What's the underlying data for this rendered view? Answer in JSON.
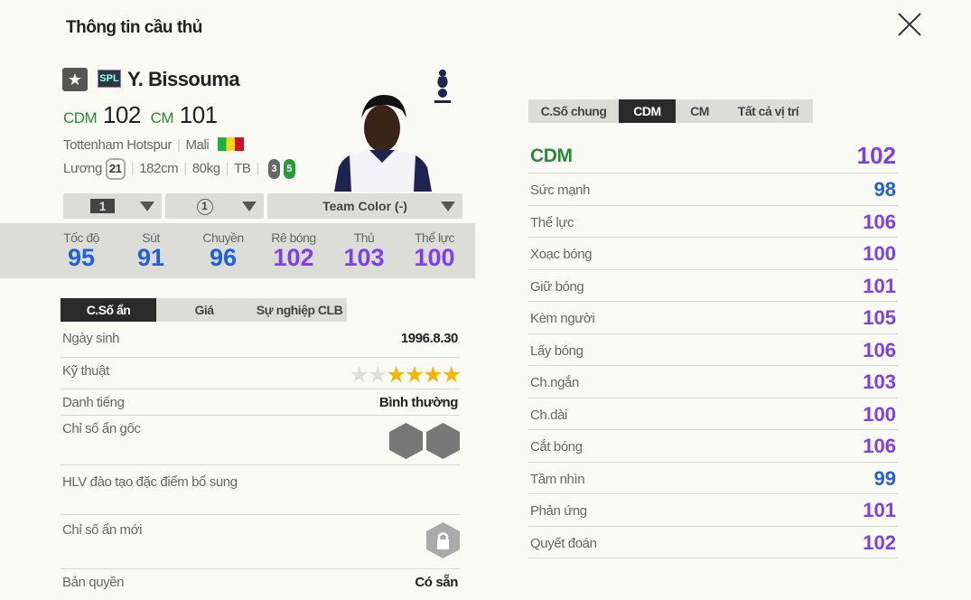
{
  "title": "Thông tin cầu thủ",
  "player": {
    "name": "Y. Bissouma",
    "season_badge": "SPL",
    "pos1": "CDM",
    "ovr1": "102",
    "pos2": "CM",
    "ovr2": "101",
    "club": "Tottenham Hotspur",
    "nation": "Mali",
    "salary_label": "Lương",
    "salary": "21",
    "height": "182cm",
    "weight": "80kg",
    "body": "TB",
    "weak_foot": "3",
    "strong_foot": "5"
  },
  "selectors": {
    "upgrade": "1",
    "level": "1",
    "team_color": "Team Color (-)"
  },
  "main_stats": [
    {
      "label": "Tốc độ",
      "value": "95",
      "tier": "blue"
    },
    {
      "label": "Sút",
      "value": "91",
      "tier": "blue"
    },
    {
      "label": "Chuyền",
      "value": "96",
      "tier": "blue"
    },
    {
      "label": "Rê bóng",
      "value": "102",
      "tier": "purple"
    },
    {
      "label": "Thủ",
      "value": "103",
      "tier": "purple"
    },
    {
      "label": "Thể lực",
      "value": "100",
      "tier": "purple"
    }
  ],
  "left_tabs": [
    "C.Số ẩn",
    "Giá",
    "Sự nghiệp CLB"
  ],
  "details": {
    "birth_label": "Ngày sinh",
    "birth": "1996.8.30",
    "skill_label": "Kỹ thuật",
    "skill_stars": 4,
    "skill_max": 6,
    "rep_label": "Danh tiếng",
    "rep": "Bình thường",
    "traits_label": "Chỉ số ẩn gốc",
    "coach_label": "HLV đào tạo đặc điểm bổ sung",
    "new_traits_label": "Chỉ số ẩn mới",
    "license_label": "Bản quyền",
    "license": "Có sẵn"
  },
  "right_tabs": [
    "C.Số chung",
    "CDM",
    "CM",
    "Tất cả vị trí"
  ],
  "position_header": {
    "label": "CDM",
    "value": "102"
  },
  "position_stats": [
    {
      "label": "Sức mạnh",
      "value": "98"
    },
    {
      "label": "Thể lực",
      "value": "106"
    },
    {
      "label": "Xoạc bóng",
      "value": "100"
    },
    {
      "label": "Giữ bóng",
      "value": "101"
    },
    {
      "label": "Kèm người",
      "value": "105"
    },
    {
      "label": "Lấy bóng",
      "value": "106"
    },
    {
      "label": "Ch.ngắn",
      "value": "103"
    },
    {
      "label": "Ch.dài",
      "value": "100"
    },
    {
      "label": "Cắt bóng",
      "value": "106"
    },
    {
      "label": "Tầm nhìn",
      "value": "99"
    },
    {
      "label": "Phản ứng",
      "value": "101"
    },
    {
      "label": "Quyết đoán",
      "value": "102"
    }
  ],
  "colors": {
    "position": "#2a8a3a",
    "blue_stat": "#1f5fe0",
    "purple_stat": "#7a3ff0",
    "star": "#f5b800"
  }
}
